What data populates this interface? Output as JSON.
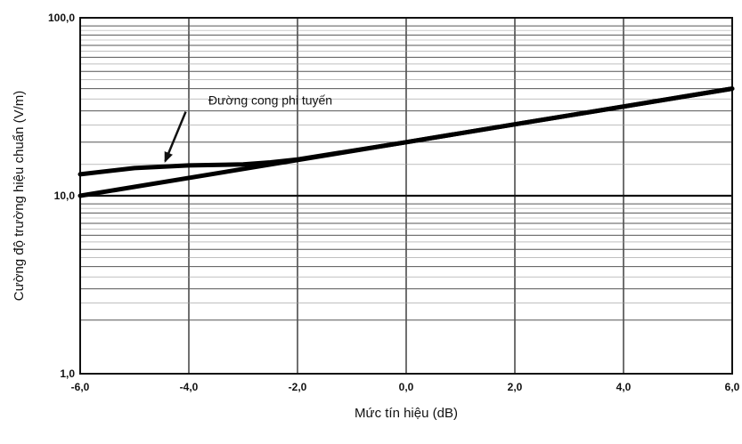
{
  "chart_data": {
    "type": "line",
    "title": "",
    "xlabel": "Mức tín hiệu (dB)",
    "ylabel": "Cường độ trường hiệu chuẩn (V/m)",
    "x_scale": "linear",
    "y_scale": "log",
    "xlim": [
      -6,
      6
    ],
    "ylim": [
      1,
      100
    ],
    "grid": true,
    "x_ticks": [
      -6,
      -4,
      -2,
      0,
      2,
      4,
      6
    ],
    "x_tick_labels": [
      "-6,0",
      "-4,0",
      "-2,0",
      "0,0",
      "2,0",
      "4,0",
      "6,0"
    ],
    "y_ticks": [
      1,
      10,
      100
    ],
    "y_tick_labels": [
      "1,0",
      "10,0",
      "100,0"
    ],
    "series": [
      {
        "name": "",
        "x": [
          -6,
          0,
          6
        ],
        "y": [
          10,
          20,
          40
        ]
      },
      {
        "name": "",
        "x": [
          -6,
          -5,
          -4,
          -3,
          -2.5,
          -2,
          0,
          2,
          4,
          6
        ],
        "y": [
          13.2,
          14.3,
          14.8,
          15.0,
          15.4,
          16.0,
          20,
          25.2,
          31.7,
          40
        ]
      }
    ],
    "annotations": [
      {
        "text": "Đường cong phi tuyến",
        "x": -2.5,
        "y": 32.5,
        "arrow_to": [
          -4.5,
          14.6
        ]
      }
    ]
  }
}
